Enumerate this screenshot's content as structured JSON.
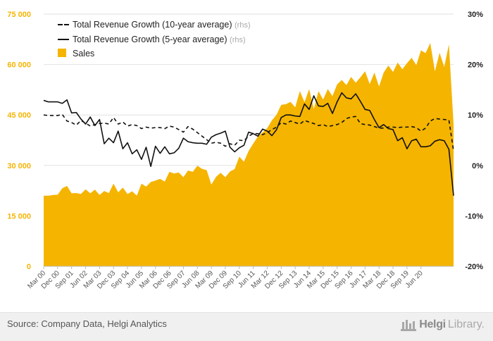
{
  "source": "Source: Company Data, Helgi Analytics",
  "brand": {
    "name": "Helgi",
    "suffix": "Library.",
    "logo_icon": "building-icon"
  },
  "colors": {
    "sales": "#f5b400",
    "lines": "#111111",
    "grid": "#e2e2e2"
  },
  "chart_data": {
    "type": "area",
    "title": "",
    "xlabel": "",
    "y_left": {
      "ylim": [
        0,
        75000
      ],
      "ticks": [
        0,
        15000,
        30000,
        45000,
        60000,
        75000
      ],
      "tick_labels": [
        "0",
        "15 000",
        "30 000",
        "45 000",
        "60 000",
        "75 000"
      ]
    },
    "y_right": {
      "ylim": [
        -20,
        30
      ],
      "ticks": [
        -20,
        -10,
        0,
        10,
        20,
        30
      ],
      "tick_labels": [
        "-20%",
        "-10%",
        "0%",
        "10%",
        "20%",
        "30%"
      ]
    },
    "grid": true,
    "legend_position": "top-left",
    "x_start": "Mar 00",
    "x_tick_labels": [
      "Mar 00",
      "Dec 00",
      "Sep 01",
      "Jun 02",
      "Mar 03",
      "Dec 03",
      "Sep 04",
      "Jun 05",
      "Mar 06",
      "Dec 06",
      "Sep 07",
      "Jun 08",
      "Mar 09",
      "Dec 09",
      "Sep 10",
      "Jun 11",
      "Mar 12",
      "Dec 12",
      "Sep 13",
      "Jun 14",
      "Mar 15",
      "Dec 15",
      "Sep 16",
      "Jun 17",
      "Mar 18",
      "Dec 18",
      "Sep 19",
      "Jun 20"
    ],
    "series": [
      {
        "name": "Total Revenue Growth (10-year average)",
        "unit": "(rhs)",
        "axis": "right",
        "style": "dashed",
        "values": [
          10,
          9.9,
          9.9,
          9.9,
          10.1,
          8.8,
          8.5,
          8,
          8.9,
          8.4,
          7.8,
          8.1,
          8.3,
          8.4,
          8.2,
          9.5,
          8.2,
          8.6,
          7.8,
          8.1,
          7.9,
          7.3,
          7.6,
          7.4,
          7.5,
          7.5,
          7.3,
          7.8,
          7.6,
          7.1,
          6.6,
          7.7,
          7.2,
          6.5,
          5.8,
          5.1,
          4.4,
          4.6,
          4.4,
          3.8,
          4.3,
          4.0,
          5.0,
          4.9,
          5.8,
          6.3,
          6.3,
          6.1,
          6.5,
          7.1,
          7.6,
          8.5,
          8.2,
          8.8,
          8.5,
          8.2,
          8.9,
          8.6,
          8.3,
          7.9,
          8.1,
          7.7,
          7.9,
          8.1,
          8.5,
          9.3,
          9.6,
          9.7,
          8.3,
          8.1,
          8.0,
          7.7,
          7.4,
          7.4,
          7.6,
          7.6,
          7.5,
          7.6,
          7.6,
          7.7,
          7.5,
          6.8,
          7.4,
          8.8,
          9.3,
          9.2,
          9.1,
          9.0,
          2.9
        ]
      },
      {
        "name": "Total Revenue Growth (5-year average)",
        "unit": "(rhs)",
        "axis": "right",
        "style": "solid",
        "values": [
          12.9,
          12.6,
          12.6,
          12.6,
          12.3,
          13,
          10.4,
          10.5,
          9.2,
          8.2,
          9.6,
          7.9,
          9.1,
          4.3,
          5.4,
          4.5,
          6.8,
          3.3,
          4.5,
          2.3,
          3.1,
          1.2,
          3.6,
          -0.2,
          3.8,
          2.4,
          3.7,
          2.3,
          2.5,
          3.4,
          5.4,
          4.7,
          4.5,
          4.4,
          4.4,
          4.2,
          5.6,
          6.1,
          6.4,
          6.8,
          3.6,
          2.7,
          3.5,
          4.0,
          6.6,
          6.3,
          5.8,
          7.2,
          6.8,
          5.9,
          7.1,
          9.5,
          10,
          10,
          9.8,
          9.7,
          12.2,
          11.1,
          13.8,
          11.8,
          11.7,
          12.3,
          10.3,
          12.6,
          14.4,
          13.4,
          13.2,
          14.2,
          12.7,
          11.1,
          10.9,
          9.1,
          7.5,
          8.1,
          7.3,
          7.1,
          4.9,
          5.5,
          3.3,
          4.9,
          5.2,
          3.7,
          3.7,
          3.9,
          4.8,
          5.1,
          4.9,
          3.2,
          -6.0
        ]
      },
      {
        "name": "Sales",
        "axis": "left",
        "style": "area",
        "values": [
          21000,
          21000,
          21200,
          21300,
          23200,
          23900,
          21700,
          21800,
          21500,
          22900,
          21700,
          22800,
          21200,
          22400,
          21800,
          24600,
          22000,
          23400,
          21500,
          22300,
          21000,
          24600,
          23700,
          25100,
          25500,
          26000,
          25200,
          28100,
          27600,
          27900,
          26500,
          28500,
          28100,
          29900,
          29000,
          28600,
          24300,
          26600,
          27800,
          26500,
          28200,
          28900,
          32600,
          31100,
          34300,
          36500,
          38600,
          39800,
          41100,
          43400,
          45100,
          48000,
          48200,
          48900,
          47300,
          52100,
          48800,
          52700,
          46800,
          52100,
          49600,
          52700,
          50600,
          54100,
          55400,
          53900,
          56300,
          54600,
          56200,
          58000,
          54200,
          57600,
          53500,
          57600,
          59700,
          57800,
          60600,
          58600,
          60400,
          62000,
          59800,
          64200,
          63400,
          66400,
          58000,
          63500,
          59300,
          66000,
          42200
        ]
      }
    ]
  }
}
